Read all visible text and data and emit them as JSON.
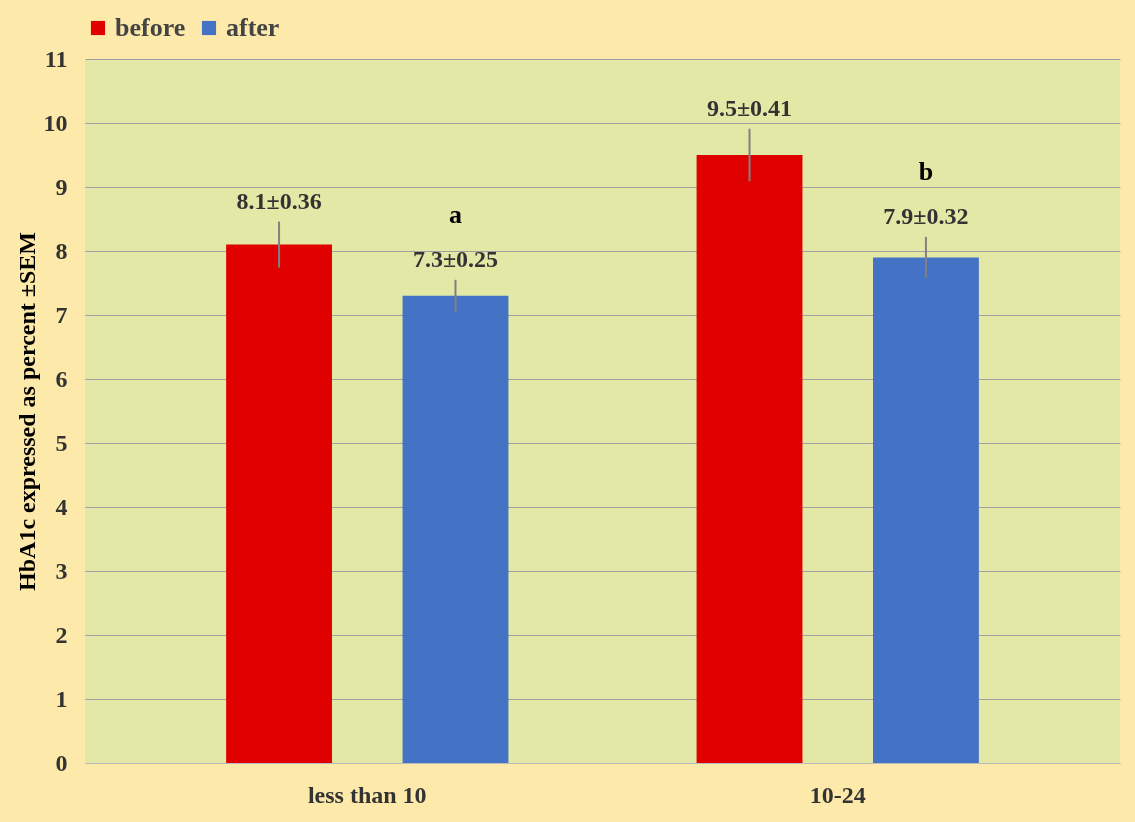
{
  "chart_data": {
    "type": "bar",
    "ylabel": "HbA1c expressed as percent ±SEM",
    "categories": [
      "less than 10",
      "10-24"
    ],
    "series": [
      {
        "name": "before",
        "color": "#e00000",
        "values": [
          8.1,
          9.5
        ],
        "errors": [
          0.36,
          0.41
        ],
        "value_labels": [
          "8.1±0.36",
          "9.5±0.41"
        ]
      },
      {
        "name": "after",
        "color": "#4472c4",
        "values": [
          7.3,
          7.9
        ],
        "errors": [
          0.25,
          0.32
        ],
        "value_labels": [
          "7.3±0.25",
          "7.9±0.32"
        ]
      }
    ],
    "annotations": [
      "a",
      "b"
    ],
    "ylim": [
      0,
      11
    ],
    "yticks": [
      0,
      1,
      2,
      3,
      4,
      5,
      6,
      7,
      8,
      9,
      10,
      11
    ],
    "grid": "y",
    "legend": "top"
  }
}
